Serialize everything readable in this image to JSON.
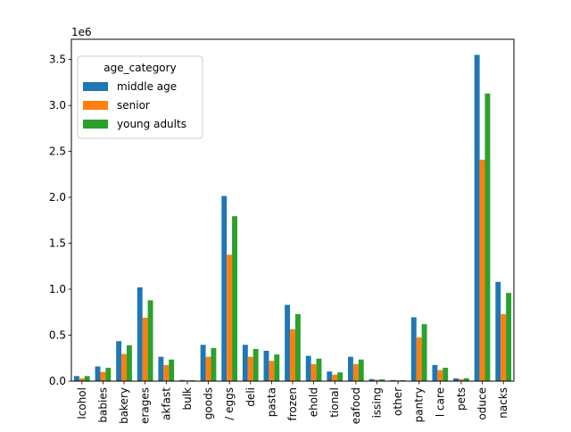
{
  "chart_data": {
    "type": "bar",
    "categories": [
      "alcohol",
      "babies",
      "bakery",
      "beverages",
      "breakfast",
      "bulk",
      "canned goods",
      "dairy eggs",
      "deli",
      "dry goods pasta",
      "frozen",
      "household",
      "international",
      "meat seafood",
      "missing",
      "other",
      "pantry",
      "personal care",
      "pets",
      "produce",
      "snacks"
    ],
    "tick_labels": [
      "lcohol",
      "babies",
      "bakery",
      "erages",
      "akfast",
      "bulk",
      "goods",
      "/ eggs",
      "deli",
      "pasta",
      "frozen",
      "ehold",
      "tional",
      "eafood",
      "issing",
      "other",
      "pantry",
      "l care",
      "pets",
      "oduce",
      "nacks"
    ],
    "series": [
      {
        "name": "middle age",
        "color": "#1f77b4",
        "values": [
          55000,
          160000,
          435000,
          1020000,
          265000,
          12000,
          395000,
          2015000,
          395000,
          330000,
          830000,
          275000,
          105000,
          265000,
          22000,
          12000,
          695000,
          175000,
          30000,
          3550000,
          1080000
        ]
      },
      {
        "name": "senior",
        "color": "#ff7f0e",
        "values": [
          30000,
          100000,
          295000,
          690000,
          175000,
          8000,
          265000,
          1375000,
          265000,
          220000,
          565000,
          185000,
          70000,
          185000,
          15000,
          8000,
          475000,
          120000,
          22000,
          2410000,
          730000
        ]
      },
      {
        "name": "young adults",
        "color": "#2ca02c",
        "values": [
          55000,
          145000,
          390000,
          880000,
          235000,
          10000,
          360000,
          1795000,
          350000,
          290000,
          730000,
          245000,
          95000,
          235000,
          20000,
          10000,
          620000,
          145000,
          32000,
          3130000,
          960000
        ]
      }
    ],
    "ylim": [
      0,
      3720000
    ],
    "yticks": [
      0,
      500000,
      1000000,
      1500000,
      2000000,
      2500000,
      3000000,
      3500000
    ],
    "ytick_labels": [
      "0.0",
      "0.5",
      "1.0",
      "1.5",
      "2.0",
      "2.5",
      "3.0",
      "3.5"
    ],
    "y_offset_label": "1e6",
    "legend": {
      "title": "age_category",
      "position": "upper-left"
    },
    "grid": false
  }
}
